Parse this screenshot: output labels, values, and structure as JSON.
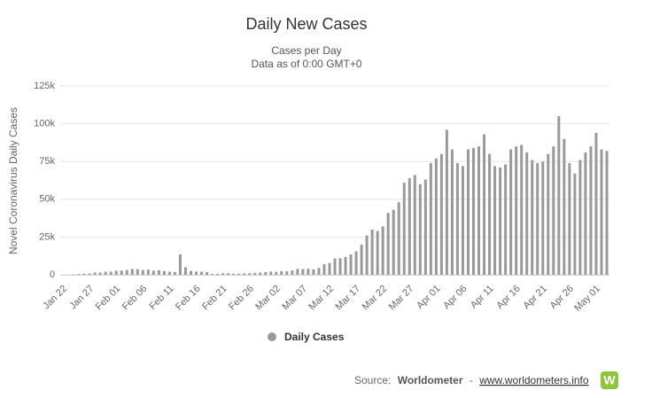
{
  "chart_data": {
    "type": "bar",
    "title": "Daily New Cases",
    "subtitle": [
      "Cases per Day",
      "Data as of 0:00 GMT+0"
    ],
    "y_label": "Novel Coronavirus Daily Cases",
    "categories": [
      "Jan 22",
      null,
      null,
      null,
      null,
      "Jan 27",
      null,
      null,
      null,
      null,
      "Feb 01",
      null,
      null,
      null,
      null,
      "Feb 06",
      null,
      null,
      null,
      null,
      "Feb 11",
      null,
      null,
      null,
      null,
      "Feb 16",
      null,
      null,
      null,
      null,
      "Feb 21",
      null,
      null,
      null,
      null,
      "Feb 26",
      null,
      null,
      null,
      null,
      "Mar 02",
      null,
      null,
      null,
      null,
      "Mar 07",
      null,
      null,
      null,
      null,
      "Mar 12",
      null,
      null,
      null,
      null,
      "Mar 17",
      null,
      null,
      null,
      null,
      "Mar 22",
      null,
      null,
      null,
      null,
      "Mar 27",
      null,
      null,
      null,
      null,
      "Apr 01",
      null,
      null,
      null,
      null,
      "Apr 06",
      null,
      null,
      null,
      null,
      "Apr 11",
      null,
      null,
      null,
      null,
      "Apr 16",
      null,
      null,
      null,
      null,
      "Apr 21",
      null,
      null,
      null,
      null,
      "Apr 26",
      null,
      null,
      null,
      null,
      "May 01",
      null,
      null
    ],
    "series": [
      {
        "name": "Daily Cases",
        "color": "#999999",
        "values": [
          0,
          100,
          300,
          500,
          700,
          800,
          1500,
          1500,
          2000,
          2100,
          2600,
          2800,
          3200,
          3900,
          3700,
          3200,
          3400,
          2700,
          3000,
          2500,
          2000,
          1800,
          13500,
          5000,
          2600,
          2100,
          2000,
          1800,
          500,
          600,
          1000,
          1000,
          700,
          700,
          900,
          1000,
          1200,
          1400,
          1800,
          2100,
          1900,
          2400,
          2300,
          2800,
          3900,
          3800,
          4000,
          3600,
          4600,
          7000,
          7800,
          10800,
          11000,
          11800,
          13500,
          15500,
          20000,
          26000,
          30000,
          29000,
          32000,
          41000,
          43000,
          48000,
          61000,
          64000,
          66000,
          60000,
          63000,
          74000,
          77000,
          80000,
          96000,
          83000,
          74000,
          72000,
          83000,
          84000,
          85000,
          93000,
          80000,
          72000,
          71000,
          73000,
          83000,
          85000,
          86000,
          81000,
          76000,
          74000,
          75000,
          80000,
          85000,
          105000,
          90000,
          74000,
          67000,
          76000,
          81000,
          85000,
          94000,
          83000,
          82000
        ]
      }
    ],
    "ylim": [
      0,
      125000
    ],
    "yticks": [
      0,
      {
        "value": 25000,
        "label": "25k"
      },
      {
        "value": 50000,
        "label": "50k"
      },
      {
        "value": 75000,
        "label": "75k"
      },
      {
        "value": 100000,
        "label": "100k"
      },
      {
        "value": 125000,
        "label": "125k"
      }
    ],
    "grid": true,
    "legend": "bottom",
    "source": {
      "prefix": "Source:",
      "name": "Worldometer",
      "separator": "-",
      "link": "www.worldometers.info",
      "logo": "W"
    }
  }
}
